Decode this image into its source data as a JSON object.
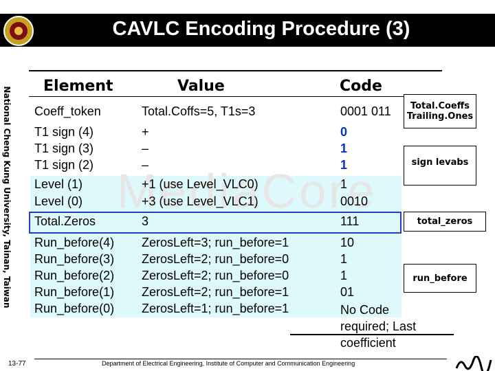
{
  "header": {
    "title": "CAVLC Encoding Procedure (3)"
  },
  "sidebar": "National Cheng Kung University, Tainan, Taiwan",
  "watermark": "MediaCore",
  "table": {
    "headers": [
      "Element",
      "Value",
      "Code"
    ],
    "rows": [
      [
        "Coeff_token",
        "Total.Coffs=5, T1s=3",
        "0001 011"
      ],
      [
        "T1 sign (4)",
        "+",
        "0"
      ],
      [
        "T1 sign (3)",
        "–",
        "1"
      ],
      [
        "T1 sign (2)",
        "–",
        "1"
      ],
      [
        "Level (1)",
        "+1 (use Level_VLC0)",
        "1"
      ],
      [
        "Level (0)",
        "+3 (use Level_VLC1)",
        "0010"
      ],
      [
        "Total.Zeros",
        "3",
        "111"
      ],
      [
        "Run_before(4)",
        "ZerosLeft=3; run_before=1",
        "10"
      ],
      [
        "Run_before(3)",
        "ZerosLeft=2; run_before=0",
        "1"
      ],
      [
        "Run_before(2)",
        "ZerosLeft=2; run_before=0",
        "1"
      ],
      [
        "Run_before(1)",
        "ZerosLeft=2; run_before=1",
        "01"
      ],
      [
        "Run_before(0)",
        "ZerosLeft=1; run_before=1",
        "No Code required; Last coefficient"
      ]
    ]
  },
  "annotations": [
    "Total.Coeffs Trailing.Ones",
    "sign levabs",
    "total_zeros",
    "run_before"
  ],
  "footer": {
    "page": "13-77",
    "department": "Department of Electrical Engineering, Institute of Computer and Communication Engineering"
  }
}
